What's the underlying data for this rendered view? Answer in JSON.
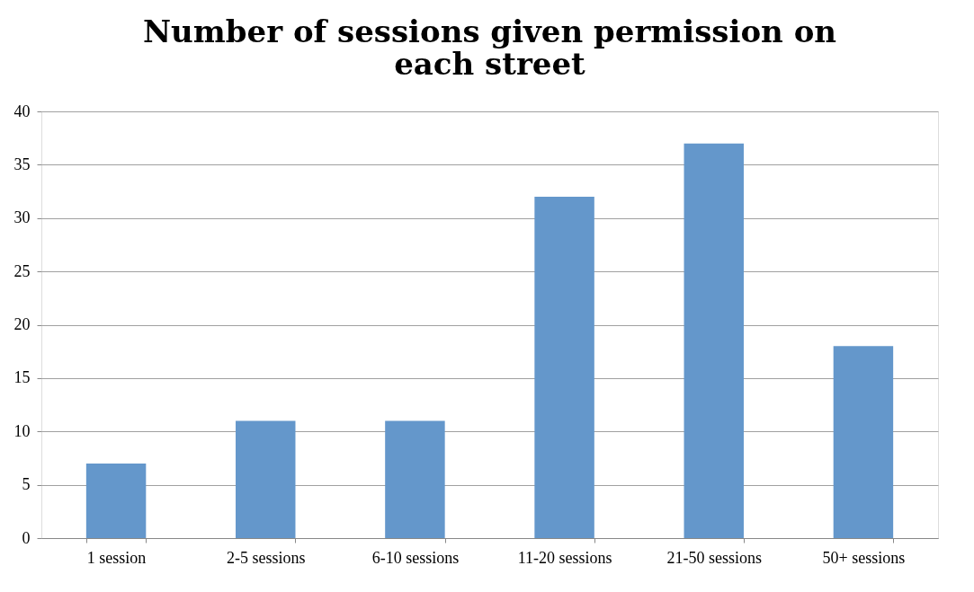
{
  "chart_data": {
    "type": "bar",
    "title": "Number of sessions given permission on each street",
    "categories": [
      "1 session",
      "2-5 sessions",
      "6-10 sessions",
      "11-20 sessions",
      "21-50 sessions",
      "50+ sessions"
    ],
    "values": [
      7,
      11,
      11,
      32,
      37,
      18
    ],
    "color": "#6497cb",
    "ylim": [
      0,
      40
    ],
    "yticks": [
      0,
      5,
      10,
      15,
      20,
      25,
      30,
      35,
      40
    ],
    "grid": "y"
  }
}
